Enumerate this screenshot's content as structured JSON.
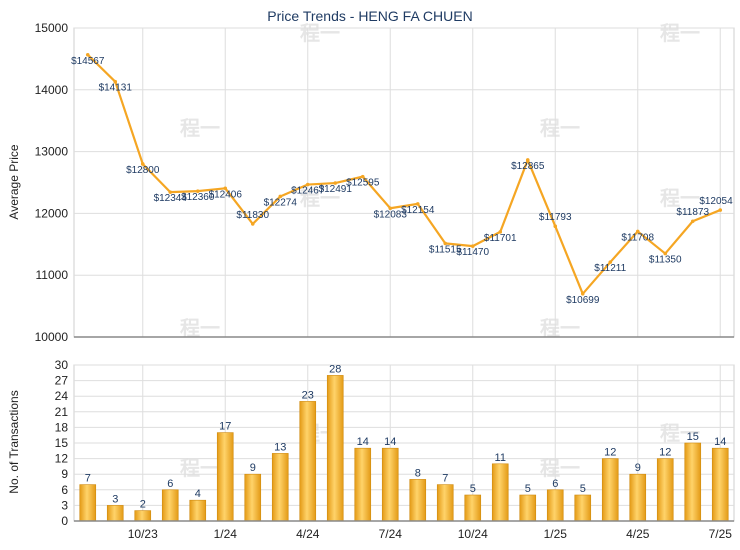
{
  "chart_data": [
    {
      "type": "line",
      "title": "Price Trends - HENG FA CHUEN",
      "ylabel": "Average Price",
      "ylim": [
        10000,
        15000
      ],
      "yticks": [
        10000,
        11000,
        12000,
        13000,
        14000,
        15000
      ],
      "color": "#f5a623",
      "grid": true,
      "series": [
        {
          "values": [
            14567,
            14131,
            12800,
            12344,
            12360,
            12406,
            11830,
            12274,
            12467,
            12491,
            12595,
            12083,
            12154,
            11515,
            11470,
            11701,
            12865,
            11793,
            10699,
            11211,
            11708,
            11350,
            11873,
            12054
          ],
          "labels": [
            "$14567",
            "$14131",
            "$12800",
            "$12344",
            "$12360",
            "$12406",
            "$11830",
            "$12274",
            "$12467",
            "$12491",
            "$12595",
            "$12083",
            "$12154",
            "$11515",
            "$11470",
            "$11701",
            "$12865",
            "$11793",
            "$10699",
            "$11211",
            "$11708",
            "$11350",
            "$11873",
            "$12054"
          ]
        }
      ]
    },
    {
      "type": "bar",
      "ylabel": "No. of Transactions",
      "ylim": [
        0,
        30
      ],
      "yticks": [
        0,
        3,
        6,
        9,
        12,
        15,
        18,
        21,
        24,
        27,
        30
      ],
      "xticks": [
        {
          "label": "10/23",
          "index": 2
        },
        {
          "label": "1/24",
          "index": 5
        },
        {
          "label": "4/24",
          "index": 8
        },
        {
          "label": "7/24",
          "index": 11
        },
        {
          "label": "10/24",
          "index": 14
        },
        {
          "label": "1/25",
          "index": 17
        },
        {
          "label": "4/25",
          "index": 20
        },
        {
          "label": "7/25",
          "index": 23
        }
      ],
      "color": "#f5a623",
      "grid": true,
      "values": [
        7,
        3,
        2,
        6,
        4,
        17,
        9,
        13,
        23,
        28,
        14,
        14,
        8,
        7,
        5,
        11,
        5,
        6,
        5,
        12,
        9,
        12,
        15,
        14
      ]
    }
  ],
  "watermark": "程一"
}
